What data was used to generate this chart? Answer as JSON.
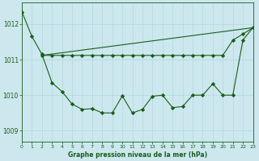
{
  "title": "Graphe pression niveau de la mer (hPa)",
  "bg_color": "#cce8ee",
  "line_color": "#1a5c1a",
  "xlim": [
    0,
    23
  ],
  "ylim": [
    1008.7,
    1012.6
  ],
  "yticks": [
    1009,
    1010,
    1011,
    1012
  ],
  "xticks": [
    0,
    1,
    2,
    3,
    4,
    5,
    6,
    7,
    8,
    9,
    10,
    11,
    12,
    13,
    14,
    15,
    16,
    17,
    18,
    19,
    20,
    21,
    22,
    23
  ],
  "series1_x": [
    0,
    1,
    2,
    3,
    4,
    5,
    6,
    7,
    8,
    9,
    10,
    11,
    12,
    13,
    14,
    15,
    16,
    17,
    18,
    19,
    20,
    21,
    22,
    23
  ],
  "series1_y": [
    1012.35,
    1011.65,
    1011.15,
    1010.35,
    1010.1,
    1009.75,
    1009.6,
    1009.62,
    1009.5,
    1009.5,
    1009.98,
    1009.5,
    1009.6,
    1009.97,
    1010.0,
    1009.65,
    1009.68,
    1010.0,
    1010.0,
    1010.32,
    1010.0,
    1010.0,
    1011.55,
    1011.9
  ],
  "series2_x": [
    2,
    3,
    4,
    5,
    6,
    7,
    8,
    9,
    10,
    11,
    12,
    13,
    14,
    15,
    16,
    17,
    18,
    19,
    20,
    21,
    22,
    23
  ],
  "series2_y": [
    1011.12,
    1011.12,
    1011.12,
    1011.12,
    1011.12,
    1011.12,
    1011.12,
    1011.12,
    1011.12,
    1011.12,
    1011.12,
    1011.12,
    1011.12,
    1011.12,
    1011.12,
    1011.12,
    1011.12,
    1011.12,
    1011.12,
    1011.55,
    1011.72,
    1011.9
  ],
  "series3_x": [
    2,
    23
  ],
  "series3_y": [
    1011.12,
    1011.9
  ]
}
